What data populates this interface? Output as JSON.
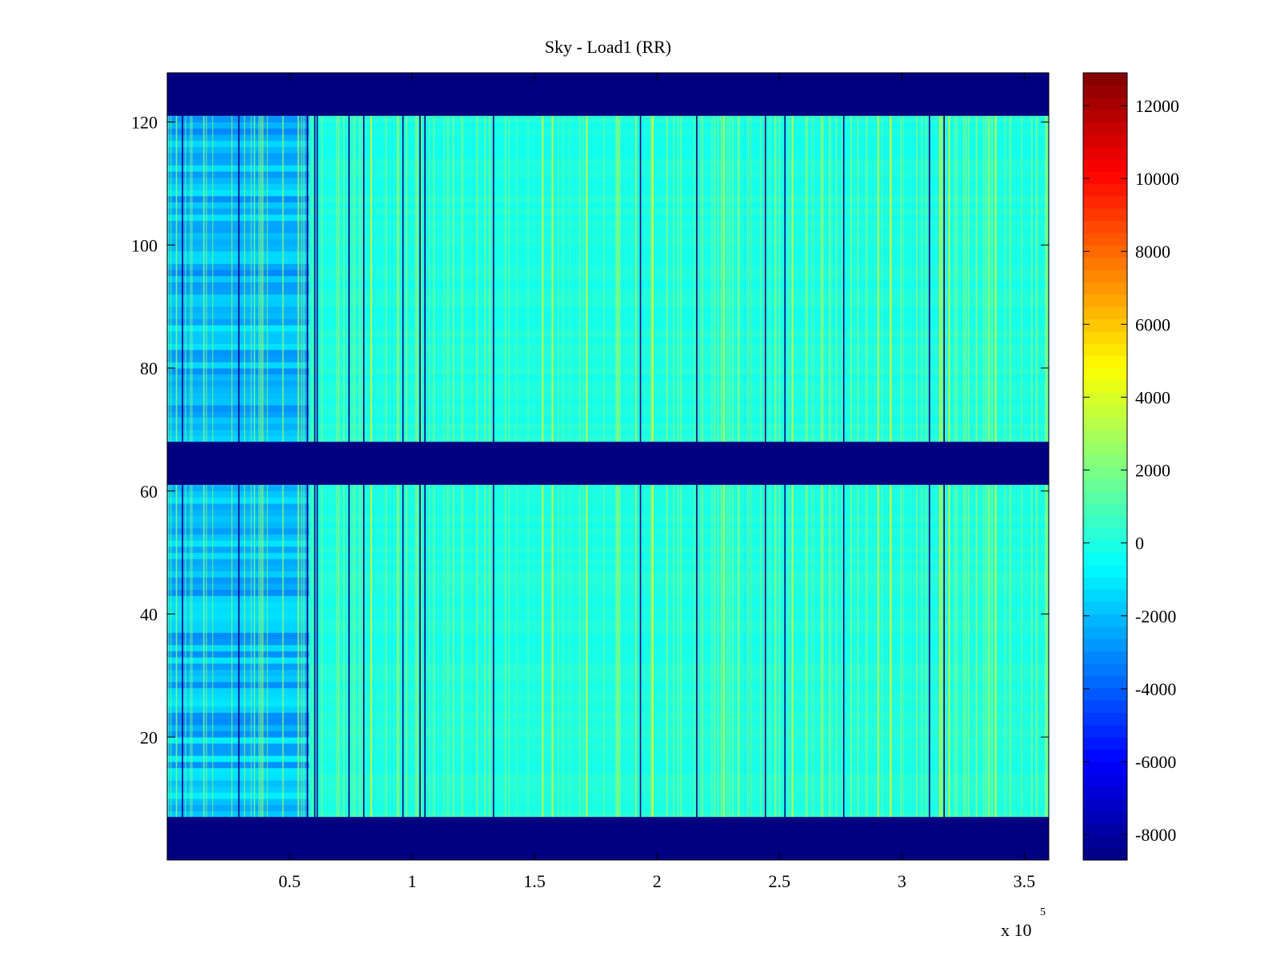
{
  "chart_data": {
    "type": "heatmap",
    "title": "Sky - Load1 (RR)",
    "xlabel": "",
    "ylabel": "",
    "x_multiplier_label": "x 10",
    "x_multiplier_exponent": "5",
    "xlim": [
      0,
      3.6
    ],
    "ylim": [
      0,
      128
    ],
    "x_ticks": [
      0.5,
      1,
      1.5,
      2,
      2.5,
      3,
      3.5
    ],
    "x_tick_labels": [
      "0.5",
      "1",
      "1.5",
      "2",
      "2.5",
      "3",
      "3.5"
    ],
    "y_ticks": [
      20,
      40,
      60,
      80,
      100,
      120
    ],
    "y_tick_labels": [
      "20",
      "40",
      "60",
      "80",
      "100",
      "120"
    ],
    "colormap": "jet",
    "colorbar": {
      "range": [
        -8700,
        12900
      ],
      "ticks": [
        12000,
        10000,
        8000,
        6000,
        4000,
        2000,
        0,
        -2000,
        -4000,
        -6000,
        -8000
      ],
      "tick_labels": [
        "12000",
        "10000",
        "8000",
        "6000",
        "4000",
        "2000",
        "0",
        "-2000",
        "-4000",
        "-6000",
        "-8000"
      ]
    },
    "masked_row_bands": [
      {
        "y_range": [
          0,
          7
        ],
        "value": -8700
      },
      {
        "y_range": [
          61,
          68
        ],
        "value": -8700
      },
      {
        "y_range": [
          121,
          128
        ],
        "value": -8700
      }
    ],
    "background_value": 0,
    "low_value_region": {
      "x_range": [
        0,
        0.58
      ],
      "value": -2000
    },
    "dropout_columns_x": [
      0.06,
      0.29,
      0.57,
      0.6,
      0.61,
      0.74,
      0.8,
      0.96,
      1.03,
      1.05,
      1.33,
      1.93,
      2.16,
      2.44,
      2.52,
      2.76,
      3.11,
      3.17
    ],
    "spike_columns_x": [
      0.83,
      1.53,
      1.57,
      1.71,
      1.98,
      2.27,
      2.55,
      2.67,
      2.9,
      2.95,
      3.19,
      3.38
    ]
  }
}
